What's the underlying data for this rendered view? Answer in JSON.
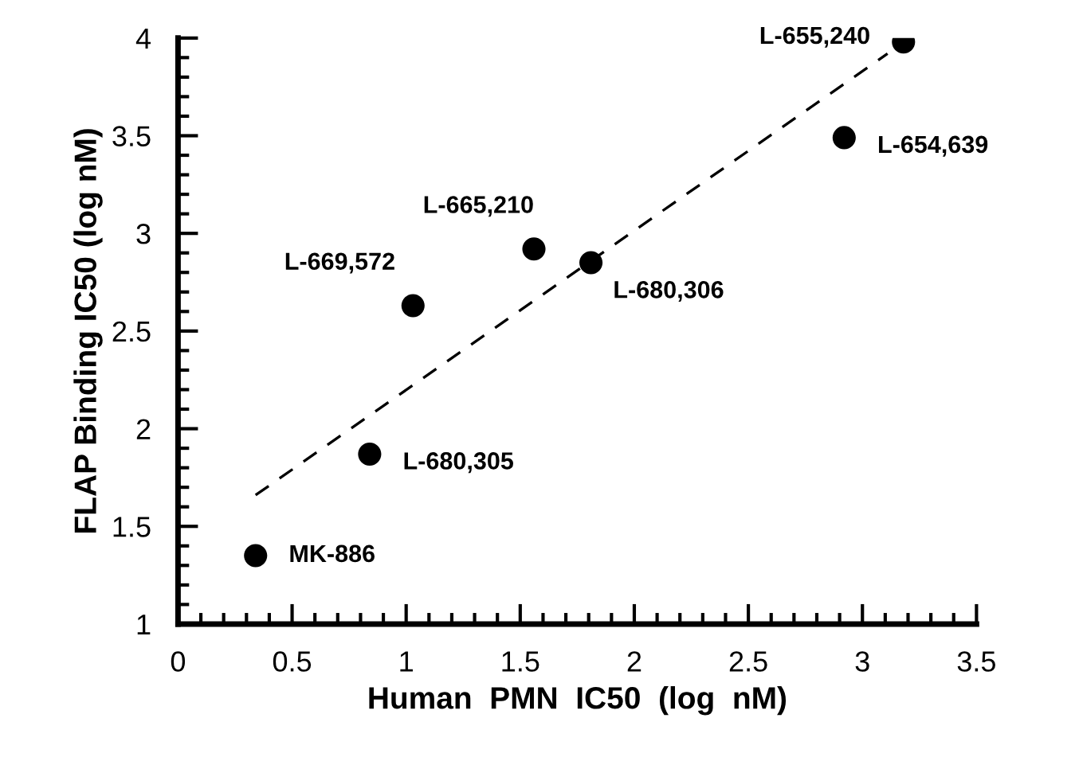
{
  "chart_data": {
    "type": "scatter",
    "xlabel": "Human  PMN  IC50  (log  nM)",
    "ylabel": "FLAP Binding IC50 (log nM)",
    "series": [
      {
        "color": "#000000",
        "marker": "circle",
        "x": [
          0.34,
          0.84,
          1.03,
          1.56,
          1.81,
          2.92,
          3.18
        ],
        "values": [
          1.35,
          1.87,
          2.63,
          2.92,
          2.85,
          3.49,
          3.98
        ]
      },
      {
        "type": "line",
        "color": "#000000",
        "line_style": "dashed",
        "marker": "none",
        "x": [
          0.34,
          3.11
        ],
        "values": [
          1.66,
          3.92
        ]
      }
    ],
    "annotations": [
      {
        "text": "MK-886",
        "x": 0.34,
        "y": 1.35
      },
      {
        "text": "L-680,305",
        "x": 0.84,
        "y": 1.87
      },
      {
        "text": "L-669,572",
        "x": 1.03,
        "y": 2.63
      },
      {
        "text": "L-665,210",
        "x": 1.56,
        "y": 2.92
      },
      {
        "text": "L-680,306",
        "x": 1.81,
        "y": 2.85
      },
      {
        "text": "L-654,639",
        "x": 2.92,
        "y": 3.49
      },
      {
        "text": "L-655,240",
        "x": 3.18,
        "y": 3.98
      }
    ],
    "xlim": [
      0,
      3.5
    ],
    "ylim": [
      1,
      4
    ],
    "xticks": [
      0,
      0.5,
      1,
      1.5,
      2,
      2.5,
      3,
      3.5
    ],
    "yticks": [
      1,
      1.5,
      2,
      2.5,
      3,
      3.5,
      4
    ],
    "grid": false,
    "legend": false
  }
}
